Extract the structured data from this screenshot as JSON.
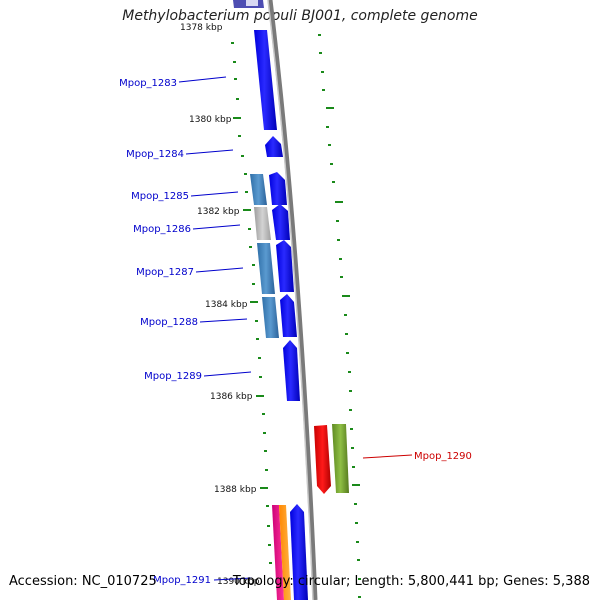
{
  "title": "Methylobacterium populi BJ001, complete genome",
  "footer": {
    "accession": "Accession: NC_010725",
    "summary": "Topology: circular; Length: 5,800,441 bp; Genes: 5,388"
  },
  "ticks": [
    "1378 kbp",
    "1380 kbp",
    "1382 kbp",
    "1384 kbp",
    "1386 kbp",
    "1388 kbp",
    "1390 kbp"
  ],
  "genes": [
    {
      "name": "Mpop_1283",
      "color": "#1a1aff"
    },
    {
      "name": "Mpop_1284",
      "color": "#1a1aff"
    },
    {
      "name": "Mpop_1285",
      "color": "#1a1aff"
    },
    {
      "name": "Mpop_1286",
      "color": "#1a1aff"
    },
    {
      "name": "Mpop_1287",
      "color": "#1a1aff"
    },
    {
      "name": "Mpop_1288",
      "color": "#1a1aff"
    },
    {
      "name": "Mpop_1289",
      "color": "#1a1aff"
    },
    {
      "name": "Mpop_1290",
      "color": "#e00000"
    },
    {
      "name": "Mpop_1291",
      "color": "#1a1aff"
    }
  ],
  "colors": {
    "label_blue": "#0000cc",
    "label_red": "#cc0000",
    "backbone": "#8a8a8a",
    "tick_green": "#1a8a1a"
  }
}
